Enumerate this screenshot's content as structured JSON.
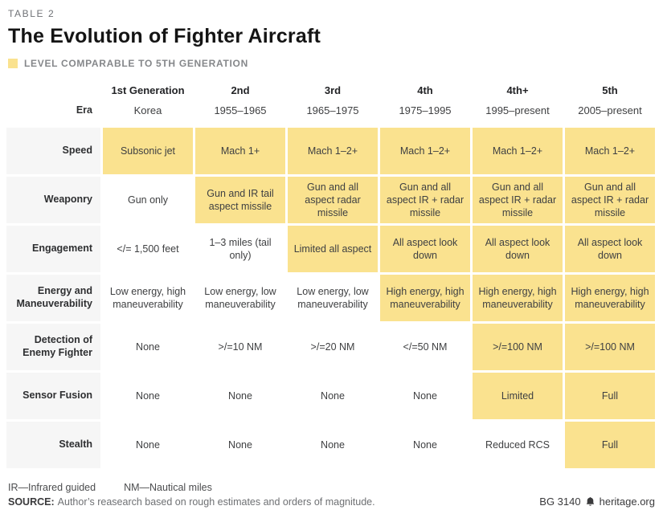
{
  "header": {
    "kicker": "TABLE 2",
    "title": "The Evolution of Fighter Aircraft",
    "legend_label": "LEVEL COMPARABLE TO 5TH GENERATION"
  },
  "colors": {
    "highlight_yellow": "#fae28f",
    "row_label_gray": "#f6f6f6"
  },
  "chart_data": {
    "type": "table",
    "title": "The Evolution of Fighter Aircraft",
    "legend": "LEVEL COMPARABLE TO 5TH GENERATION",
    "highlight_meaning": "Level comparable to 5th generation",
    "era_label": "Era",
    "columns": [
      "1st Generation",
      "2nd",
      "3rd",
      "4th",
      "4th+",
      "5th"
    ],
    "eras": [
      "Korea",
      "1955–1965",
      "1965–1975",
      "1975–1995",
      "1995–present",
      "2005–present"
    ],
    "rows": [
      {
        "label": "Speed",
        "cells": [
          {
            "text": "Subsonic jet",
            "h": true
          },
          {
            "text": "Mach 1+",
            "h": true
          },
          {
            "text": "Mach 1–2+",
            "h": true
          },
          {
            "text": "Mach 1–2+",
            "h": true
          },
          {
            "text": "Mach 1–2+",
            "h": true
          },
          {
            "text": "Mach 1–2+",
            "h": true
          }
        ]
      },
      {
        "label": "Weaponry",
        "cells": [
          {
            "text": "Gun only",
            "h": false
          },
          {
            "text": "Gun and IR tail aspect missile",
            "h": true
          },
          {
            "text": "Gun and all aspect radar missile",
            "h": true
          },
          {
            "text": "Gun and all aspect IR + radar missile",
            "h": true
          },
          {
            "text": "Gun and all aspect IR + radar missile",
            "h": true
          },
          {
            "text": "Gun and all aspect IR + radar missile",
            "h": true
          }
        ]
      },
      {
        "label": "Engagement",
        "cells": [
          {
            "text": "</= 1,500 feet",
            "h": false
          },
          {
            "text": "1–3 miles (tail only)",
            "h": false
          },
          {
            "text": "Limited all aspect",
            "h": true
          },
          {
            "text": "All aspect look down",
            "h": true
          },
          {
            "text": "All aspect look down",
            "h": true
          },
          {
            "text": "All aspect look down",
            "h": true
          }
        ]
      },
      {
        "label": "Energy and Maneuverability",
        "cells": [
          {
            "text": "Low energy, high maneuverability",
            "h": false
          },
          {
            "text": "Low energy, low maneuverability",
            "h": false
          },
          {
            "text": "Low energy, low maneuverability",
            "h": false
          },
          {
            "text": "High energy, high maneuverability",
            "h": true
          },
          {
            "text": "High energy, high maneuverability",
            "h": true
          },
          {
            "text": "High energy, high maneuverability",
            "h": true
          }
        ]
      },
      {
        "label": "Detection of Enemy Fighter",
        "cells": [
          {
            "text": "None",
            "h": false
          },
          {
            "text": ">/=10 NM",
            "h": false
          },
          {
            "text": ">/=20 NM",
            "h": false
          },
          {
            "text": "</=50 NM",
            "h": false
          },
          {
            "text": ">/=100 NM",
            "h": true
          },
          {
            "text": ">/=100 NM",
            "h": true
          }
        ]
      },
      {
        "label": "Sensor Fusion",
        "cells": [
          {
            "text": "None",
            "h": false
          },
          {
            "text": "None",
            "h": false
          },
          {
            "text": "None",
            "h": false
          },
          {
            "text": "None",
            "h": false
          },
          {
            "text": "Limited",
            "h": true
          },
          {
            "text": "Full",
            "h": true
          }
        ]
      },
      {
        "label": "Stealth",
        "cells": [
          {
            "text": "None",
            "h": false
          },
          {
            "text": "None",
            "h": false
          },
          {
            "text": "None",
            "h": false
          },
          {
            "text": "None",
            "h": false
          },
          {
            "text": "Reduced RCS",
            "h": false
          },
          {
            "text": "Full",
            "h": true
          }
        ]
      }
    ]
  },
  "footnotes": [
    "IR—Infrared guided",
    "NM—Nautical miles"
  ],
  "source": {
    "label": "SOURCE:",
    "text": "Author’s reasearch based on rough estimates and orders of magnitude."
  },
  "footer_right": {
    "doc_id": "BG 3140",
    "site": "heritage.org"
  }
}
